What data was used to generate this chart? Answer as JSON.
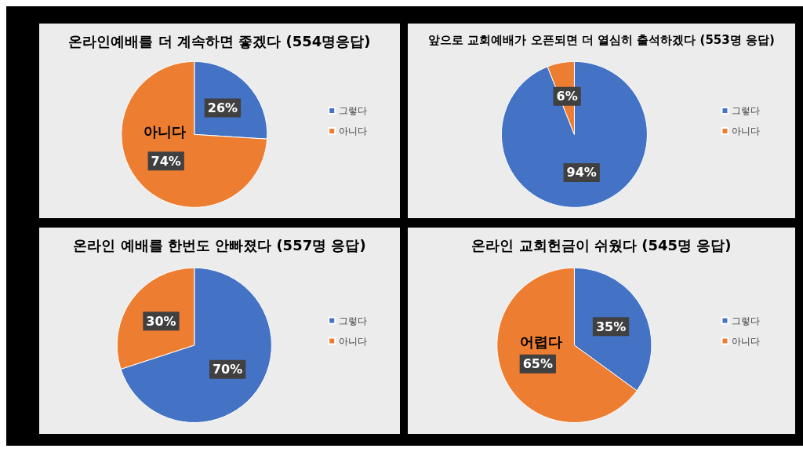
{
  "chart_data": [
    {
      "type": "pie",
      "title": "온라인예배를 더 계속하면 좋겠다 (554명응답)",
      "categories": [
        "그렇다",
        "아니다"
      ],
      "values": [
        26,
        74
      ],
      "colors": [
        "#4472c4",
        "#ed7d31"
      ],
      "value_labels": [
        "26%",
        "74%"
      ],
      "annotations": [
        "아니다"
      ],
      "legend": "right"
    },
    {
      "type": "pie",
      "title": "앞으로 교회예배가 오픈되면 더 열심히 출석하겠다 (553명 응답)",
      "categories": [
        "그렇다",
        "아니다"
      ],
      "values": [
        94,
        6
      ],
      "colors": [
        "#4472c4",
        "#ed7d31"
      ],
      "value_labels": [
        "94%",
        "6%"
      ],
      "legend": "right"
    },
    {
      "type": "pie",
      "title": "온라인 예배를 한번도 안빠졌다 (557명 응답)",
      "categories": [
        "그렇다",
        "아니다"
      ],
      "values": [
        70,
        30
      ],
      "colors": [
        "#4472c4",
        "#ed7d31"
      ],
      "value_labels": [
        "70%",
        "30%"
      ],
      "legend": "right"
    },
    {
      "type": "pie",
      "title": "온라인 교회헌금이 쉬웠다 (545명 응답)",
      "categories": [
        "그렇다",
        "아니다"
      ],
      "values": [
        35,
        65
      ],
      "colors": [
        "#4472c4",
        "#ed7d31"
      ],
      "value_labels": [
        "35%",
        "65%"
      ],
      "annotations": [
        "어렵다"
      ],
      "legend": "right"
    }
  ]
}
